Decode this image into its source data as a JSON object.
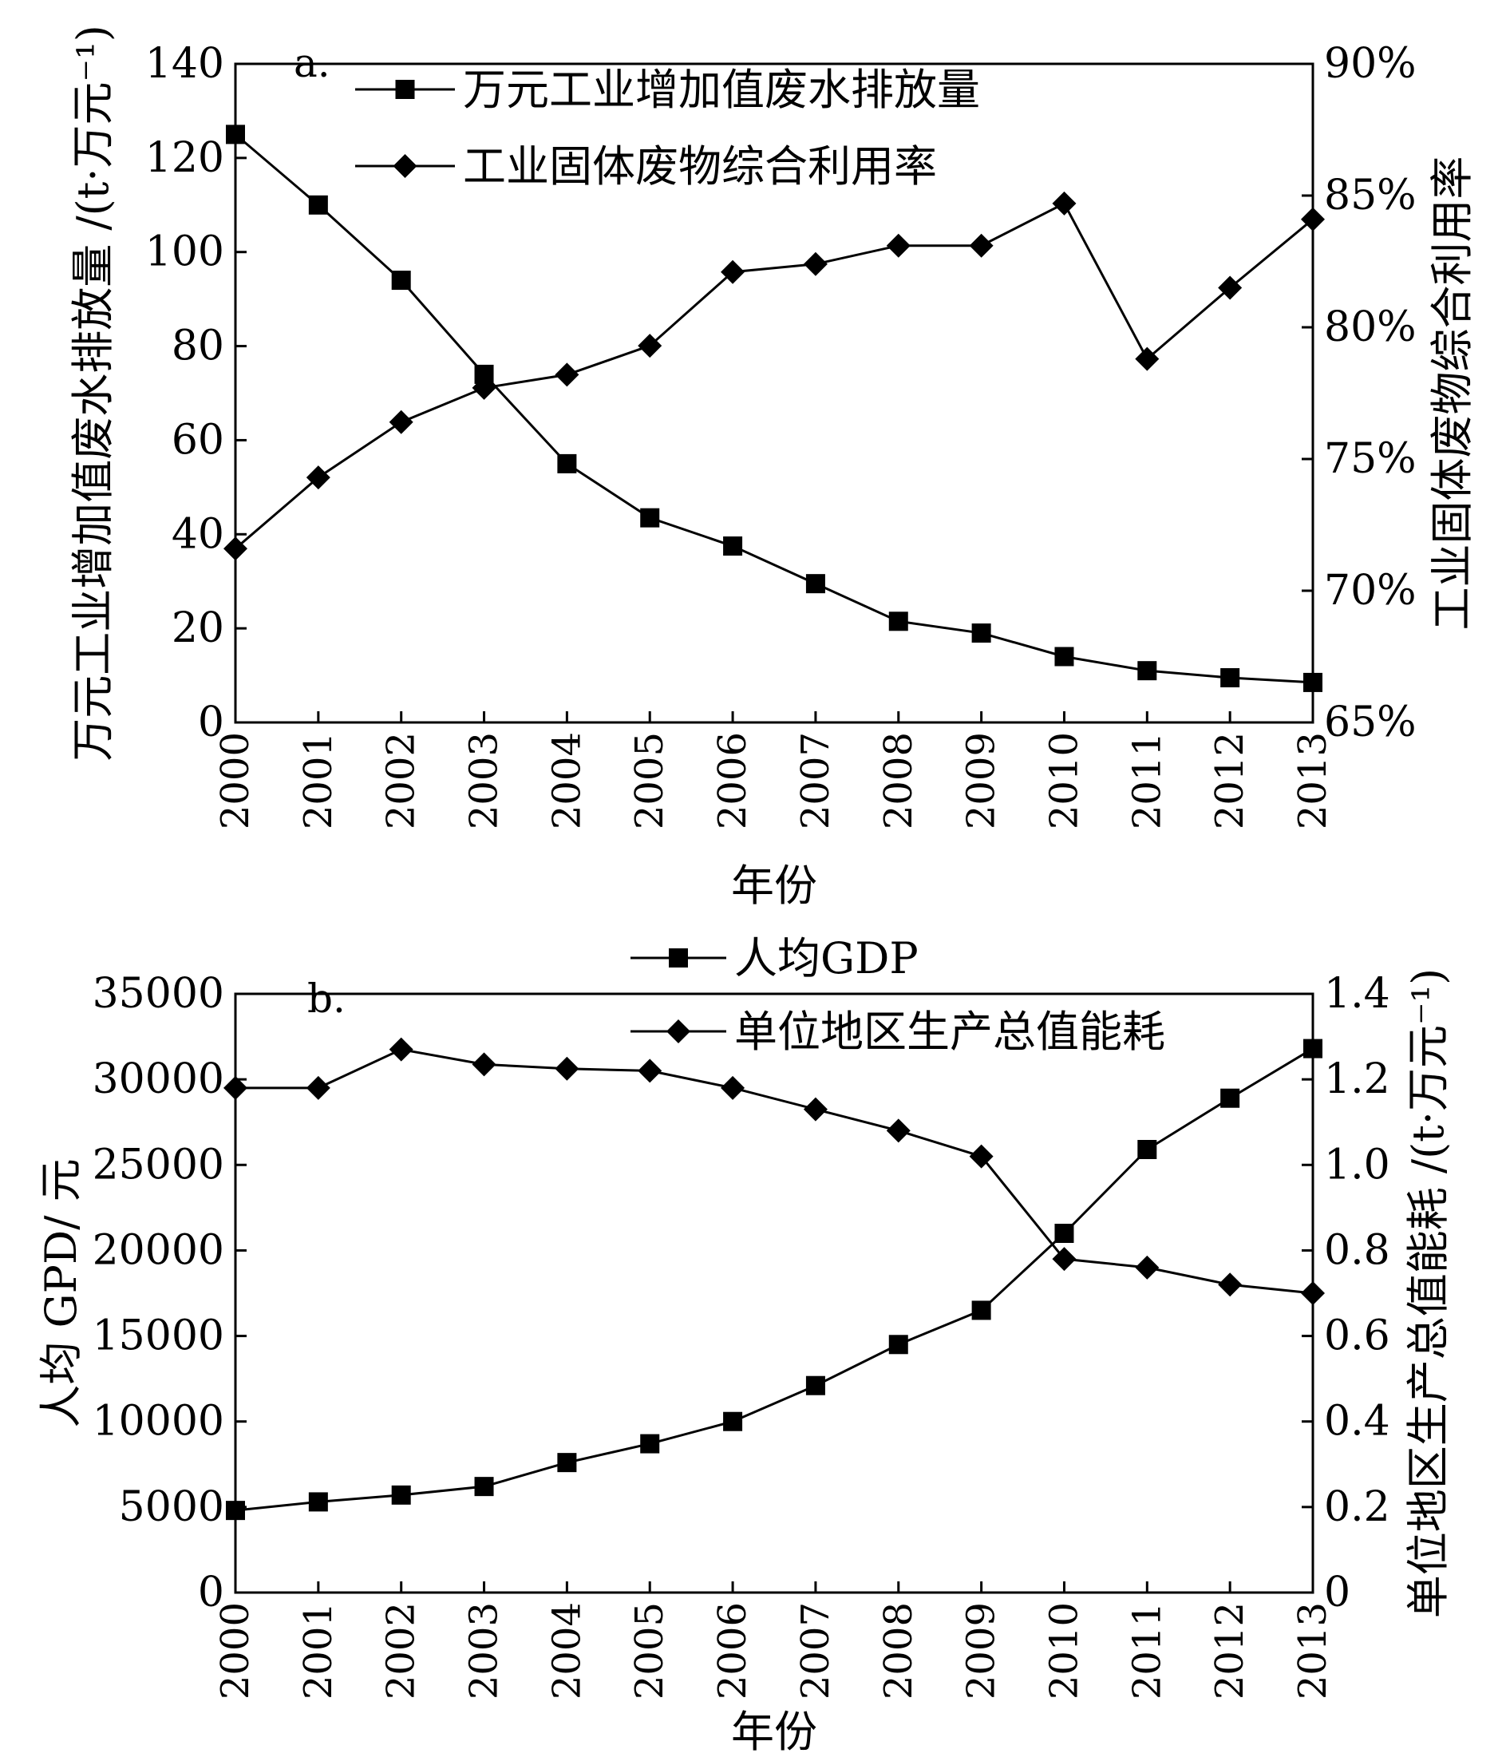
{
  "chart_data": [
    {
      "type": "line",
      "panel_label": "a.",
      "categories": [
        "2000",
        "2001",
        "2002",
        "2003",
        "2004",
        "2005",
        "2006",
        "2007",
        "2008",
        "2009",
        "2010",
        "2011",
        "2012",
        "2013"
      ],
      "xlabel": "年份",
      "ylabel": "万元工业增加值废水排放量 /(t·万元⁻¹)",
      "ylabel_right": "工业固体废物综合利用率",
      "ylim": [
        0,
        140
      ],
      "yticks": [
        "0",
        "20",
        "40",
        "60",
        "80",
        "100",
        "120",
        "140"
      ],
      "ylim_right": [
        65,
        90
      ],
      "yticks_right": [
        "65%",
        "70%",
        "75%",
        "80%",
        "85%",
        "90%"
      ],
      "legend_position": "top",
      "series": [
        {
          "name": "万元工业增加值废水排放量",
          "axis": "left",
          "marker": "square",
          "values": [
            125,
            110,
            94,
            74,
            55,
            43.5,
            37.5,
            29.5,
            21.5,
            19,
            14,
            11,
            9.5,
            8.5
          ]
        },
        {
          "name": "工业固体废物综合利用率",
          "axis": "right",
          "marker": "diamond",
          "values": [
            71.6,
            74.3,
            76.4,
            77.7,
            78.2,
            79.3,
            82.1,
            82.4,
            83.1,
            83.1,
            84.7,
            78.8,
            81.5,
            84.1
          ]
        }
      ]
    },
    {
      "type": "line",
      "panel_label": "b.",
      "categories": [
        "2000",
        "2001",
        "2002",
        "2003",
        "2004",
        "2005",
        "2006",
        "2007",
        "2008",
        "2009",
        "2010",
        "2011",
        "2012",
        "2013"
      ],
      "xlabel": "年份",
      "ylabel": "人均 GPD/ 元",
      "ylabel_right": "单位地区生产总值能耗 /(t·万元⁻¹)",
      "ylim": [
        0,
        35000
      ],
      "yticks": [
        "0",
        "5000",
        "10000",
        "15000",
        "20000",
        "25000",
        "30000",
        "35000"
      ],
      "ylim_right": [
        0,
        1.4
      ],
      "yticks_right": [
        "0",
        "0.2",
        "0.4",
        "0.6",
        "0.8",
        "1.0",
        "1.2",
        "1.4"
      ],
      "legend_position": "top",
      "series": [
        {
          "name": "人均GDP",
          "axis": "left",
          "marker": "square",
          "values": [
            4800,
            5300,
            5700,
            6200,
            7600,
            8700,
            10000,
            12100,
            14500,
            16500,
            21000,
            25900,
            28900,
            31800
          ]
        },
        {
          "name": "单位地区生产总值能耗",
          "axis": "right",
          "marker": "diamond",
          "values": [
            1.18,
            1.18,
            1.27,
            1.235,
            1.225,
            1.22,
            1.18,
            1.13,
            1.08,
            1.02,
            0.78,
            0.76,
            0.72,
            0.7
          ]
        }
      ]
    }
  ]
}
